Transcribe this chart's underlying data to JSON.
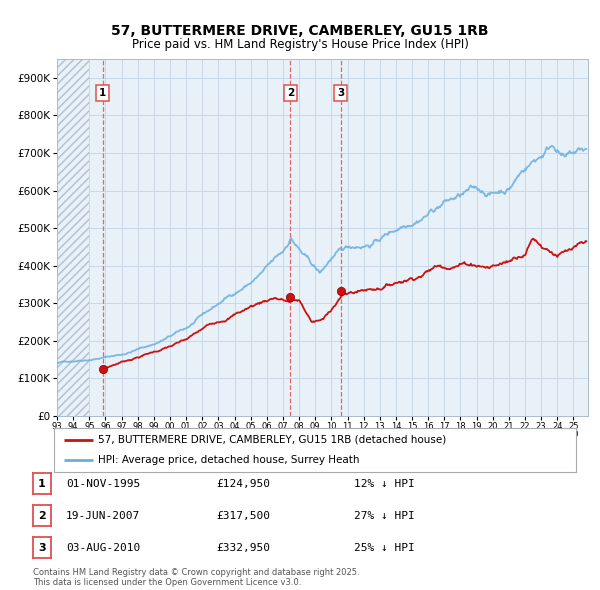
{
  "title": "57, BUTTERMERE DRIVE, CAMBERLEY, GU15 1RB",
  "subtitle": "Price paid vs. HM Land Registry's House Price Index (HPI)",
  "legend_line1": "57, BUTTERMERE DRIVE, CAMBERLEY, GU15 1RB (detached house)",
  "legend_line2": "HPI: Average price, detached house, Surrey Heath",
  "footer_line1": "Contains HM Land Registry data © Crown copyright and database right 2025.",
  "footer_line2": "This data is licensed under the Open Government Licence v3.0.",
  "transactions": [
    {
      "num": 1,
      "date": "01-NOV-1995",
      "price": 124950,
      "pct": "12%",
      "dir": "↓",
      "year_x": 1995.83
    },
    {
      "num": 2,
      "date": "19-JUN-2007",
      "price": 317500,
      "pct": "27%",
      "dir": "↓",
      "year_x": 2007.46
    },
    {
      "num": 3,
      "date": "03-AUG-2010",
      "price": 332950,
      "pct": "25%",
      "dir": "↓",
      "year_x": 2010.58
    }
  ],
  "ylim": [
    0,
    950000
  ],
  "yticks": [
    0,
    100000,
    200000,
    300000,
    400000,
    500000,
    600000,
    700000,
    800000,
    900000
  ],
  "xlim_start": 1993.0,
  "xlim_end": 2025.9,
  "xticks": [
    1993,
    1994,
    1995,
    1996,
    1997,
    1998,
    1999,
    2000,
    2001,
    2002,
    2003,
    2004,
    2005,
    2006,
    2007,
    2008,
    2009,
    2010,
    2011,
    2012,
    2013,
    2014,
    2015,
    2016,
    2017,
    2018,
    2019,
    2020,
    2021,
    2022,
    2023,
    2024,
    2025
  ],
  "hpi_color": "#6aaee0",
  "price_color": "#cc1111",
  "vline_color": "#e05050",
  "grid_color": "#c8d8e8",
  "bg_color": "#ffffff",
  "plot_bg": "#e8f0f8",
  "hatch_region_end": 1995.0
}
